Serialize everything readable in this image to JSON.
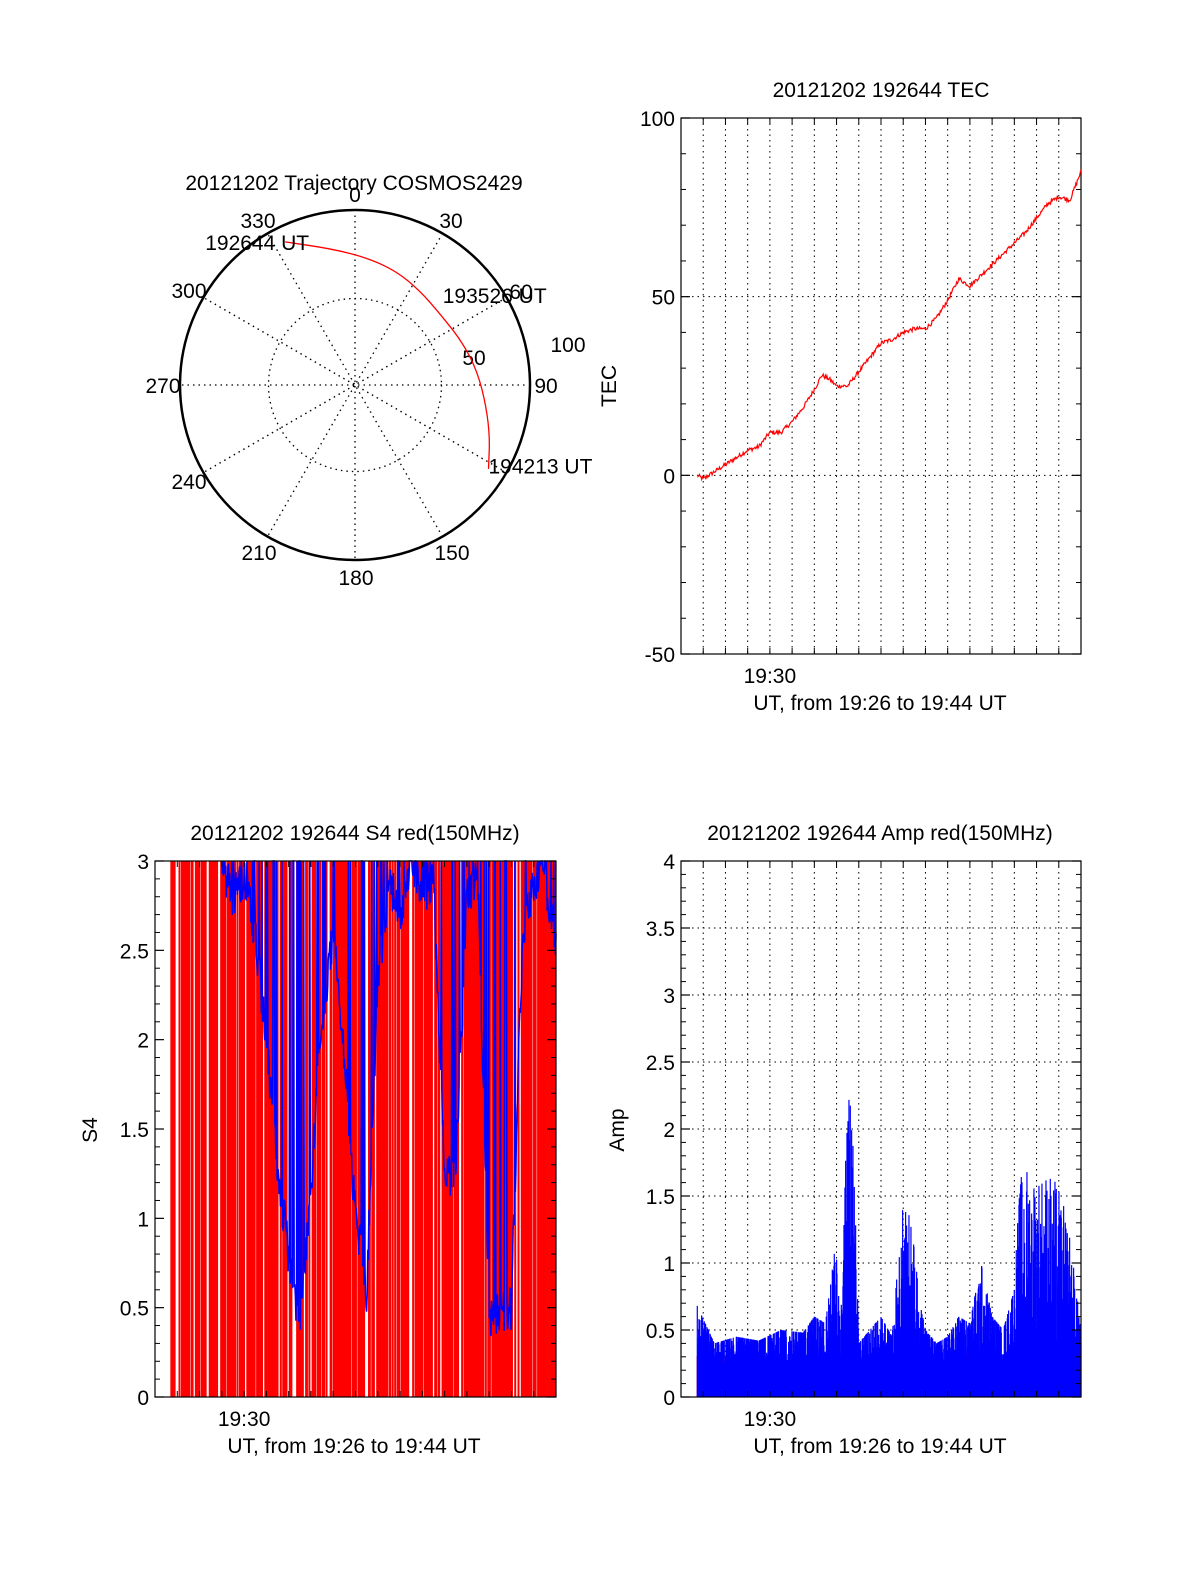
{
  "colors": {
    "red": "#ff0000",
    "blue": "#0000ff",
    "axis": "#000000",
    "grid": "#000000"
  },
  "chart_data": [
    {
      "id": "polar",
      "type": "polar",
      "title": "20121202 Trajectory COSMOS2429",
      "azimuth_labels": [
        "0",
        "30",
        "60",
        "90",
        "150",
        "180",
        "210",
        "240",
        "270",
        "300",
        "330"
      ],
      "radial_labels": [
        "50",
        "100"
      ],
      "rlim": [
        0,
        100
      ],
      "grid": true,
      "series": [
        {
          "color": "red",
          "points": [
            {
              "az": 334,
              "r": 92
            },
            {
              "az": 350,
              "r": 80
            },
            {
              "az": 5,
              "r": 74
            },
            {
              "az": 20,
              "r": 70
            },
            {
              "az": 35,
              "r": 66
            },
            {
              "az": 50,
              "r": 64
            },
            {
              "az": 65,
              "r": 66
            },
            {
              "az": 80,
              "r": 70
            },
            {
              "az": 95,
              "r": 75
            },
            {
              "az": 110,
              "r": 83
            },
            {
              "az": 122,
              "r": 91
            }
          ]
        }
      ],
      "annotations": [
        {
          "text": "192644 UT",
          "az": 334,
          "r": 92
        },
        {
          "text": "193526 UT",
          "az": 62,
          "r": 64
        },
        {
          "text": "194213 UT",
          "az": 122,
          "r": 91
        }
      ]
    },
    {
      "id": "tec",
      "type": "line",
      "title": "20121202 192644 TEC",
      "xlabel": "UT, from 19:26 to 19:44 UT",
      "ylabel": "TEC",
      "xlim": [
        "19:26:00",
        "19:44:00"
      ],
      "xticks": [
        {
          "label": "19:30",
          "x": "19:30:00"
        }
      ],
      "ylim": [
        -50,
        100
      ],
      "yticks": [
        -50,
        0,
        50,
        100
      ],
      "grid": true,
      "series": [
        {
          "color": "red",
          "x": [
            "19:26:44",
            "19:27:00",
            "19:27:30",
            "19:28:00",
            "19:28:30",
            "19:29:00",
            "19:29:30",
            "19:30:00",
            "19:30:30",
            "19:31:00",
            "19:31:30",
            "19:32:00",
            "19:32:20",
            "19:32:40",
            "19:33:00",
            "19:33:30",
            "19:34:00",
            "19:34:30",
            "19:35:00",
            "19:35:30",
            "19:36:00",
            "19:36:30",
            "19:37:00",
            "19:37:30",
            "19:38:00",
            "19:38:30",
            "19:39:00",
            "19:39:30",
            "19:40:00",
            "19:40:30",
            "19:41:00",
            "19:41:30",
            "19:42:00",
            "19:42:30",
            "19:43:00",
            "19:43:30",
            "19:44:00"
          ],
          "y": [
            0,
            -1,
            1,
            3,
            5,
            7,
            8,
            12,
            12,
            15,
            19,
            24,
            28,
            27,
            25,
            25,
            29,
            33,
            37,
            38,
            40,
            41,
            41,
            44,
            49,
            55,
            53,
            56,
            59,
            62,
            65,
            68,
            72,
            76,
            78,
            77,
            85
          ]
        }
      ]
    },
    {
      "id": "s4",
      "type": "line",
      "title": "20121202 192644 S4 red(150MHz)",
      "xlabel": "UT, from 19:26 to 19:44 UT",
      "ylabel": "S4",
      "xlim": [
        "19:26:00",
        "19:44:00"
      ],
      "xticks": [
        {
          "label": "19:30",
          "x": "19:30:00"
        }
      ],
      "ylim": [
        0,
        3
      ],
      "yticks": [
        0,
        0.5,
        1,
        1.5,
        2,
        2.5,
        3
      ],
      "grid": false,
      "series": [
        {
          "color": "red",
          "style": "saturated vertical strokes between 0 and 3 across 19:26:44–19:44:00"
        },
        {
          "color": "blue",
          "x": [
            "19:29:00",
            "19:29:30",
            "19:30:00",
            "19:30:30",
            "19:31:00",
            "19:31:30",
            "19:32:00",
            "19:32:30",
            "19:33:00",
            "19:33:30",
            "19:34:00",
            "19:34:30",
            "19:35:00",
            "19:35:30",
            "19:36:00",
            "19:36:30",
            "19:37:00",
            "19:37:30",
            "19:38:00",
            "19:38:30",
            "19:39:00",
            "19:39:30",
            "19:40:00",
            "19:40:30",
            "19:41:00",
            "19:41:30",
            "19:42:00",
            "19:42:30",
            "19:43:00",
            "19:43:30",
            "19:44:00"
          ],
          "y": [
            3,
            2.8,
            2.9,
            2.6,
            2.0,
            1.3,
            0.8,
            0.4,
            1.2,
            2.1,
            2.6,
            1.9,
            1.0,
            0.6,
            2.3,
            2.9,
            2.7,
            3.0,
            2.8,
            2.9,
            1.2,
            1.3,
            2.8,
            2.9,
            0.45,
            0.45,
            0.5,
            2.6,
            2.9,
            2.9,
            2.5
          ]
        }
      ]
    },
    {
      "id": "amp",
      "type": "line",
      "title": "20121202 192644 Amp red(150MHz)",
      "xlabel": "UT, from 19:26 to 19:44 UT",
      "ylabel": "Amp",
      "xlim": [
        "19:26:00",
        "19:44:00"
      ],
      "xticks": [
        {
          "label": "19:30",
          "x": "19:30:00"
        }
      ],
      "ylim": [
        0,
        4
      ],
      "yticks": [
        0,
        0.5,
        1,
        1.5,
        2,
        2.5,
        3,
        3.5,
        4
      ],
      "grid": true,
      "series": [
        {
          "color": "red",
          "baseline": 0.25
        },
        {
          "color": "blue",
          "x": [
            "19:26:44",
            "19:27:30",
            "19:28:30",
            "19:29:30",
            "19:30:30",
            "19:31:30",
            "19:32:00",
            "19:32:30",
            "19:33:00",
            "19:33:15",
            "19:33:30",
            "19:33:45",
            "19:34:00",
            "19:34:30",
            "19:35:00",
            "19:35:30",
            "19:36:00",
            "19:36:15",
            "19:36:30",
            "19:36:45",
            "19:37:00",
            "19:37:30",
            "19:38:00",
            "19:38:30",
            "19:39:00",
            "19:39:30",
            "19:40:00",
            "19:40:30",
            "19:41:00",
            "19:41:15",
            "19:41:30",
            "19:42:00",
            "19:42:30",
            "19:43:00",
            "19:43:30",
            "19:44:00"
          ],
          "y": [
            0.68,
            0.4,
            0.45,
            0.42,
            0.5,
            0.48,
            0.6,
            0.55,
            1.2,
            0.6,
            2.65,
            2.0,
            0.4,
            0.5,
            0.6,
            0.45,
            1.5,
            1.4,
            1.1,
            0.7,
            0.5,
            0.4,
            0.45,
            0.6,
            0.55,
            1.0,
            0.6,
            0.5,
            0.8,
            1.65,
            1.8,
            1.7,
            1.75,
            1.6,
            1.2,
            0.5
          ]
        }
      ]
    }
  ]
}
